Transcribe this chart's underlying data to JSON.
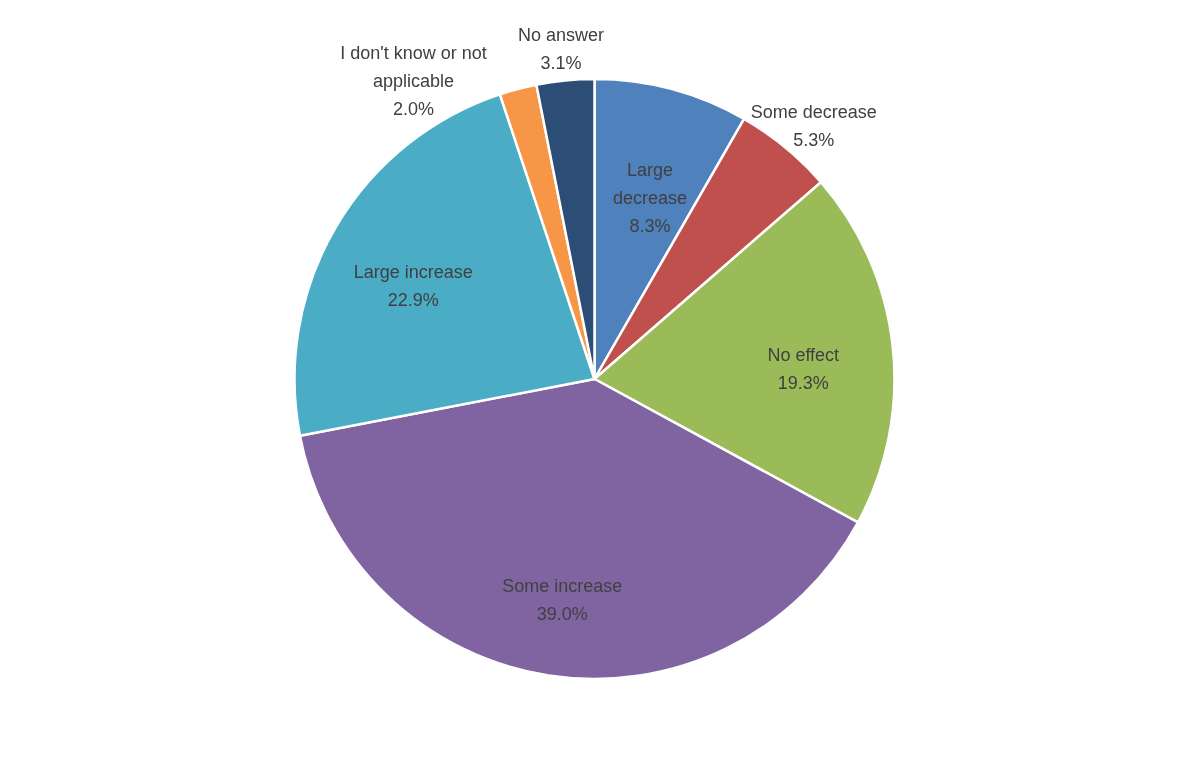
{
  "chart_data": {
    "type": "pie",
    "categories": [
      "Large decrease",
      "Some decrease",
      "No effect",
      "Some increase",
      "Large increase",
      "I don't know or not applicable",
      "No answer"
    ],
    "values": [
      8.3,
      5.3,
      19.3,
      39.0,
      22.9,
      2.0,
      3.1
    ],
    "colors": [
      "#4f81bd",
      "#c0504d",
      "#9bbb59",
      "#8064a2",
      "#4bacc6",
      "#f79646",
      "#2c4d75"
    ],
    "value_labels": [
      "8.3%",
      "5.3%",
      "19.3%",
      "39.0%",
      "22.9%",
      "2.0%",
      "3.1%"
    ]
  }
}
